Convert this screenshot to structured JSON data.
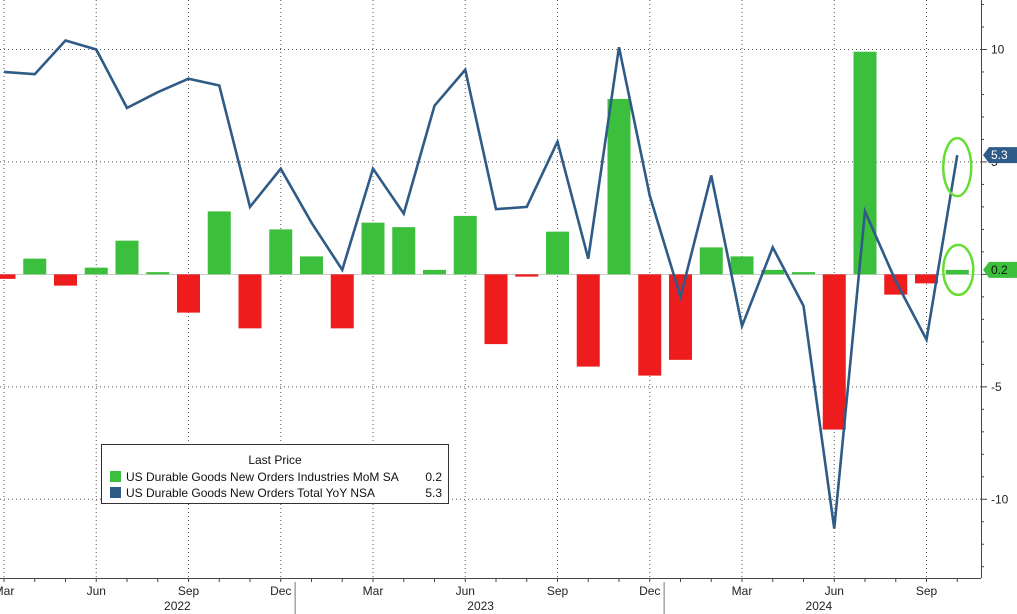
{
  "colors": {
    "bar_positive": "#3cbf3c",
    "bar_negative": "#ee1c1c",
    "line": "#2f5b87",
    "highlight_circle": "#66dd33",
    "tag_line_bg": "#2f5b87",
    "tag_bar_bg": "#3cbf3c"
  },
  "chart_data": {
    "type": "bar+line",
    "months": [
      "Mar 2022",
      "Apr 2022",
      "May 2022",
      "Jun 2022",
      "Jul 2022",
      "Aug 2022",
      "Sep 2022",
      "Oct 2022",
      "Nov 2022",
      "Dec 2022",
      "Jan 2023",
      "Feb 2023",
      "Mar 2023",
      "Apr 2023",
      "May 2023",
      "Jun 2023",
      "Jul 2023",
      "Aug 2023",
      "Sep 2023",
      "Oct 2023",
      "Nov 2023",
      "Dec 2023",
      "Jan 2024",
      "Feb 2024",
      "Mar 2024",
      "Apr 2024",
      "May 2024",
      "Jun 2024",
      "Jul 2024",
      "Aug 2024",
      "Sep 2024",
      "Oct 2024"
    ],
    "series": [
      {
        "name": "US Durable Goods New Orders Industries MoM SA",
        "type": "bar",
        "values": [
          -0.2,
          0.7,
          -0.5,
          0.3,
          1.5,
          0.1,
          -1.7,
          2.8,
          -2.4,
          2.0,
          0.8,
          -2.4,
          2.3,
          2.1,
          0.2,
          2.6,
          -3.1,
          -0.1,
          1.9,
          -4.1,
          7.8,
          -4.5,
          -3.8,
          1.2,
          0.8,
          0.2,
          0.1,
          -6.9,
          9.9,
          -0.9,
          -0.4,
          0.2
        ]
      },
      {
        "name": "US Durable Goods New Orders Total YoY NSA",
        "type": "line",
        "values": [
          9.0,
          8.9,
          10.4,
          10.0,
          7.4,
          8.1,
          8.7,
          8.4,
          3.0,
          4.7,
          2.3,
          0.2,
          4.7,
          2.7,
          7.5,
          9.1,
          2.9,
          3.0,
          5.9,
          0.7,
          10.1,
          3.5,
          -1.0,
          4.4,
          -2.3,
          1.2,
          -1.4,
          -11.3,
          2.8,
          -0.3,
          -2.9,
          5.3
        ]
      }
    ],
    "x_tick_labels": [
      {
        "month": "Mar 2022",
        "label": "Mar"
      },
      {
        "month": "Jun 2022",
        "label": "Jun"
      },
      {
        "month": "Sep 2022",
        "label": "Sep"
      },
      {
        "month": "Dec 2022",
        "label": "Dec"
      },
      {
        "month": "Mar 2023",
        "label": "Mar"
      },
      {
        "month": "Jun 2023",
        "label": "Jun"
      },
      {
        "month": "Sep 2023",
        "label": "Sep"
      },
      {
        "month": "Dec 2023",
        "label": "Dec"
      },
      {
        "month": "Mar 2024",
        "label": "Mar"
      },
      {
        "month": "Jun 2024",
        "label": "Jun"
      },
      {
        "month": "Sep 2024",
        "label": "Sep"
      }
    ],
    "year_labels": [
      "2022",
      "2023",
      "2024"
    ],
    "y_axis": {
      "position": "right",
      "ticks": [
        10,
        5,
        -5,
        -10
      ],
      "tick_labels": [
        "10",
        "5",
        "-5",
        "-10"
      ],
      "ylim": [
        -13.5,
        12.2
      ]
    },
    "last_value_tags": [
      {
        "series": "US Durable Goods New Orders Total YoY NSA",
        "label": "5.3",
        "value": 5.3
      },
      {
        "series": "US Durable Goods New Orders Industries MoM SA",
        "label": "0.2",
        "value": 0.2
      }
    ],
    "grid": true,
    "grid_style": "dotted",
    "legend": {
      "title": "Last Price",
      "placement": "bottom-left",
      "entries": [
        {
          "name": "US Durable Goods New Orders Industries MoM SA",
          "value": "0.2"
        },
        {
          "name": "US Durable Goods New Orders Total YoY NSA",
          "value": "5.3"
        }
      ]
    },
    "highlights": [
      "last line point circled",
      "last bar circled"
    ]
  }
}
